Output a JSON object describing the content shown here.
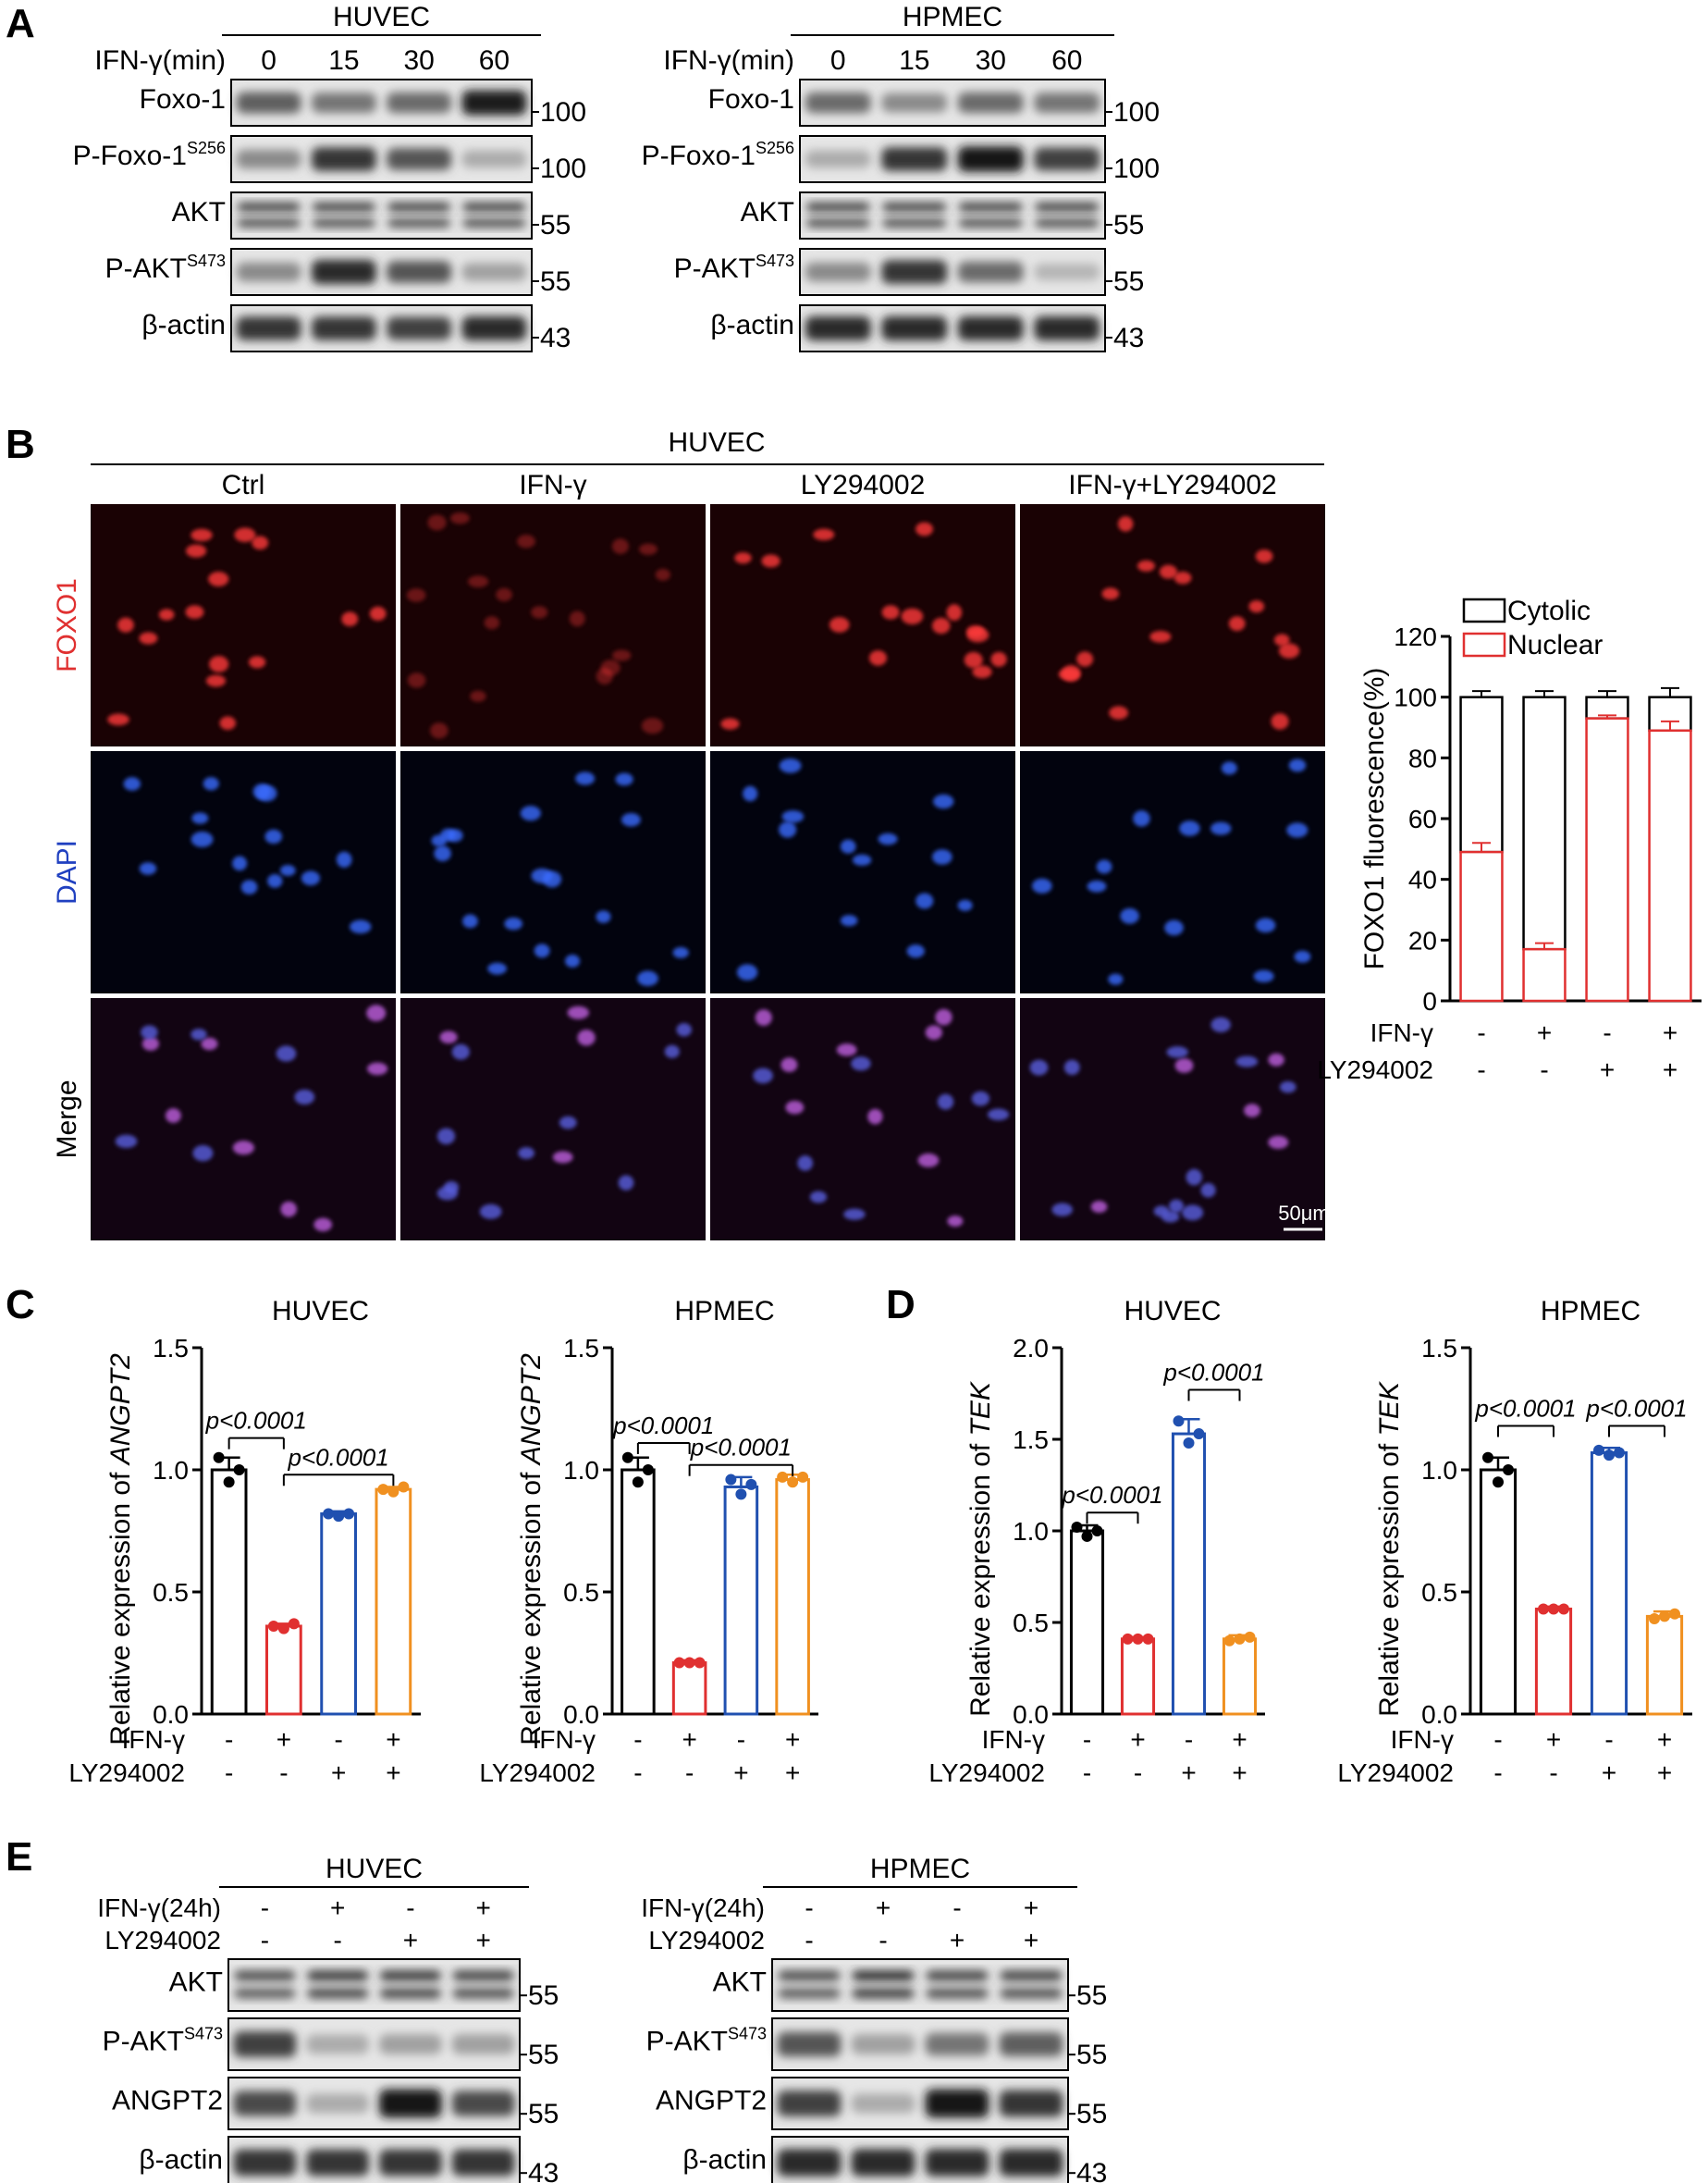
{
  "panels": {
    "A": "A",
    "B": "B",
    "C": "C",
    "D": "D",
    "E": "E"
  },
  "panelA": {
    "blots": [
      {
        "cell": "HUVEC",
        "time_label": "IFN-γ(min)",
        "times": [
          "0",
          "15",
          "30",
          "60"
        ],
        "rows": [
          {
            "label": "Foxo-1",
            "sup": "",
            "mw": "100",
            "bands": [
              0.65,
              0.55,
              0.6,
              0.95
            ],
            "double": false
          },
          {
            "label": "P-Foxo-1",
            "sup": "S256",
            "mw": "100",
            "bands": [
              0.45,
              0.85,
              0.7,
              0.3
            ],
            "double": false
          },
          {
            "label": "AKT",
            "sup": "",
            "mw": "55",
            "bands": [
              0.8,
              0.8,
              0.8,
              0.8
            ],
            "double": true
          },
          {
            "label": "P-AKT",
            "sup": "S473",
            "mw": "55",
            "bands": [
              0.45,
              0.9,
              0.7,
              0.35
            ],
            "double": false
          },
          {
            "label": "β-actin",
            "sup": "",
            "mw": "43",
            "bands": [
              0.85,
              0.85,
              0.8,
              0.9
            ],
            "double": false
          }
        ]
      },
      {
        "cell": "HPMEC",
        "time_label": "IFN-γ(min)",
        "times": [
          "0",
          "15",
          "30",
          "60"
        ],
        "rows": [
          {
            "label": "Foxo-1",
            "sup": "",
            "mw": "100",
            "bands": [
              0.6,
              0.45,
              0.6,
              0.55
            ],
            "double": false
          },
          {
            "label": "P-Foxo-1",
            "sup": "S256",
            "mw": "100",
            "bands": [
              0.3,
              0.85,
              1.0,
              0.8
            ],
            "double": false
          },
          {
            "label": "AKT",
            "sup": "",
            "mw": "55",
            "bands": [
              0.8,
              0.8,
              0.8,
              0.8
            ],
            "double": true
          },
          {
            "label": "P-AKT",
            "sup": "S473",
            "mw": "55",
            "bands": [
              0.45,
              0.85,
              0.6,
              0.25
            ],
            "double": false
          },
          {
            "label": "β-actin",
            "sup": "",
            "mw": "43",
            "bands": [
              0.9,
              0.9,
              0.9,
              0.9
            ],
            "double": false
          }
        ]
      }
    ]
  },
  "panelB": {
    "cell": "HUVEC",
    "conditions": [
      "Ctrl",
      "IFN-γ",
      "LY294002",
      "IFN-γ+LY294002"
    ],
    "rows": [
      {
        "label": "FOXO1",
        "color": "#e03030",
        "cell_color": "#ff3a3a"
      },
      {
        "label": "DAPI",
        "color": "#2040c0",
        "cell_color": "#3a6cff"
      },
      {
        "label": "Merge",
        "color": "#000000",
        "cell_color": "#c060e0"
      }
    ],
    "scale_bar": "50μm"
  },
  "chart_data": [
    {
      "id": "B-quant",
      "type": "bar",
      "stacked": true,
      "ylabel": "FOXO1 fluorescence(%)",
      "ylim": [
        0,
        120
      ],
      "yticks": [
        0,
        20,
        40,
        60,
        80,
        100,
        120
      ],
      "legend": [
        "Cytolic",
        "Nuclear"
      ],
      "series": [
        {
          "name": "Nuclear",
          "color": "#e03030",
          "values": [
            49,
            17,
            93,
            89
          ],
          "errors": [
            3,
            2,
            1,
            3
          ]
        },
        {
          "name": "Cytolic",
          "color": "#000000",
          "values": [
            51,
            83,
            7,
            11
          ],
          "errors": [
            2,
            2,
            2,
            3
          ]
        }
      ],
      "factors": [
        {
          "name": "IFN-γ",
          "signs": [
            "-",
            "+",
            "-",
            "+"
          ]
        },
        {
          "name": "LY294002",
          "signs": [
            "-",
            "-",
            "+",
            "+"
          ]
        }
      ]
    },
    {
      "id": "C-HUVEC",
      "type": "bar",
      "title": "HUVEC",
      "ylabel": "Relative expression of ",
      "ylabel_italic": "ANGPT2",
      "ylim": [
        0,
        1.5
      ],
      "yticks": [
        "0.0",
        "0.5",
        "1.0",
        "1.5"
      ],
      "values": [
        1.0,
        0.36,
        0.82,
        0.92
      ],
      "errors": [
        0.05,
        0.01,
        0.01,
        0.01
      ],
      "points": [
        [
          1.05,
          0.95,
          1.0
        ],
        [
          0.36,
          0.35,
          0.37
        ],
        [
          0.82,
          0.81,
          0.82
        ],
        [
          0.92,
          0.91,
          0.93
        ]
      ],
      "colors": [
        "#000000",
        "#e03030",
        "#2050b0",
        "#f09020"
      ],
      "sig": [
        {
          "text": "p<0.0001",
          "from": 0,
          "to": 1,
          "y": 1.13
        },
        {
          "text": "p<0.0001",
          "from": 1,
          "to": 3,
          "y": 0.98
        }
      ],
      "factors": [
        {
          "name": "IFN-γ",
          "signs": [
            "-",
            "+",
            "-",
            "+"
          ]
        },
        {
          "name": "LY294002",
          "signs": [
            "-",
            "-",
            "+",
            "+"
          ]
        }
      ]
    },
    {
      "id": "C-HPMEC",
      "type": "bar",
      "title": "HPMEC",
      "ylabel": "Relative expression of ",
      "ylabel_italic": "ANGPT2",
      "ylim": [
        0,
        1.5
      ],
      "yticks": [
        "0.0",
        "0.5",
        "1.0",
        "1.5"
      ],
      "values": [
        1.0,
        0.21,
        0.93,
        0.96
      ],
      "errors": [
        0.05,
        0.01,
        0.04,
        0.02
      ],
      "points": [
        [
          1.05,
          0.95,
          1.0
        ],
        [
          0.21,
          0.21,
          0.21
        ],
        [
          0.96,
          0.9,
          0.94
        ],
        [
          0.97,
          0.95,
          0.97
        ]
      ],
      "colors": [
        "#000000",
        "#e03030",
        "#2050b0",
        "#f09020"
      ],
      "sig": [
        {
          "text": "p<0.0001",
          "from": 0,
          "to": 1,
          "y": 1.11
        },
        {
          "text": "p<0.0001",
          "from": 1,
          "to": 3,
          "y": 1.02
        }
      ],
      "factors": [
        {
          "name": "IFN-γ",
          "signs": [
            "-",
            "+",
            "-",
            "+"
          ]
        },
        {
          "name": "LY294002",
          "signs": [
            "-",
            "-",
            "+",
            "+"
          ]
        }
      ]
    },
    {
      "id": "D-HUVEC",
      "type": "bar",
      "title": "HUVEC",
      "ylabel": "Relative expression of ",
      "ylabel_italic": "TEK",
      "ylim": [
        0,
        2.0
      ],
      "yticks": [
        "0.0",
        "0.5",
        "1.0",
        "1.5",
        "2.0"
      ],
      "values": [
        1.0,
        0.41,
        1.53,
        0.41
      ],
      "errors": [
        0.03,
        0.01,
        0.08,
        0.02
      ],
      "points": [
        [
          1.02,
          0.97,
          1.0
        ],
        [
          0.41,
          0.41,
          0.41
        ],
        [
          1.6,
          1.48,
          1.53
        ],
        [
          0.4,
          0.41,
          0.42
        ]
      ],
      "colors": [
        "#000000",
        "#e03030",
        "#2050b0",
        "#f09020"
      ],
      "sig": [
        {
          "text": "p<0.0001",
          "from": 0,
          "to": 1,
          "y": 1.1
        },
        {
          "text": "p<0.0001",
          "from": 2,
          "to": 3,
          "y": 1.77
        }
      ],
      "factors": [
        {
          "name": "IFN-γ",
          "signs": [
            "-",
            "+",
            "-",
            "+"
          ]
        },
        {
          "name": "LY294002",
          "signs": [
            "-",
            "-",
            "+",
            "+"
          ]
        }
      ]
    },
    {
      "id": "D-HPMEC",
      "type": "bar",
      "title": "HPMEC",
      "ylabel": "Relative expression of ",
      "ylabel_italic": "TEK",
      "ylim": [
        0,
        1.5
      ],
      "yticks": [
        "0.0",
        "0.5",
        "1.0",
        "1.5"
      ],
      "values": [
        1.0,
        0.43,
        1.07,
        0.4
      ],
      "errors": [
        0.05,
        0.01,
        0.02,
        0.02
      ],
      "points": [
        [
          1.05,
          0.95,
          1.0
        ],
        [
          0.43,
          0.43,
          0.43
        ],
        [
          1.08,
          1.06,
          1.07
        ],
        [
          0.39,
          0.4,
          0.41
        ]
      ],
      "colors": [
        "#000000",
        "#e03030",
        "#2050b0",
        "#f09020"
      ],
      "sig": [
        {
          "text": "p<0.0001",
          "from": 0,
          "to": 1,
          "y": 1.18
        },
        {
          "text": "p<0.0001",
          "from": 2,
          "to": 3,
          "y": 1.18
        }
      ],
      "factors": [
        {
          "name": "IFN-γ",
          "signs": [
            "-",
            "+",
            "-",
            "+"
          ]
        },
        {
          "name": "LY294002",
          "signs": [
            "-",
            "-",
            "+",
            "+"
          ]
        }
      ]
    }
  ],
  "panelE": {
    "blots": [
      {
        "cell": "HUVEC",
        "factors": [
          {
            "name": "IFN-γ(24h)",
            "signs": [
              "-",
              "+",
              "-",
              "+"
            ]
          },
          {
            "name": "LY294002",
            "signs": [
              "-",
              "-",
              "+",
              "+"
            ]
          }
        ],
        "rows": [
          {
            "label": "AKT",
            "sup": "",
            "mw": "55",
            "bands": [
              0.75,
              0.85,
              0.85,
              0.8
            ],
            "double": true
          },
          {
            "label": "P-AKT",
            "sup": "S473",
            "mw": "55",
            "bands": [
              0.8,
              0.3,
              0.35,
              0.35
            ],
            "double": false
          },
          {
            "label": "ANGPT2",
            "sup": "",
            "mw": "55",
            "bands": [
              0.75,
              0.3,
              1.0,
              0.75
            ],
            "double": false
          },
          {
            "label": "β-actin",
            "sup": "",
            "mw": "43",
            "bands": [
              0.85,
              0.85,
              0.85,
              0.85
            ],
            "double": false
          }
        ]
      },
      {
        "cell": "HPMEC",
        "factors": [
          {
            "name": "IFN-γ(24h)",
            "signs": [
              "-",
              "+",
              "-",
              "+"
            ]
          },
          {
            "name": "LY294002",
            "signs": [
              "-",
              "-",
              "+",
              "+"
            ]
          }
        ],
        "rows": [
          {
            "label": "AKT",
            "sup": "",
            "mw": "55",
            "bands": [
              0.75,
              0.9,
              0.8,
              0.8
            ],
            "double": true
          },
          {
            "label": "P-AKT",
            "sup": "S473",
            "mw": "55",
            "bands": [
              0.7,
              0.35,
              0.55,
              0.65
            ],
            "double": false
          },
          {
            "label": "ANGPT2",
            "sup": "",
            "mw": "55",
            "bands": [
              0.8,
              0.3,
              1.0,
              0.85
            ],
            "double": false
          },
          {
            "label": "β-actin",
            "sup": "",
            "mw": "43",
            "bands": [
              0.9,
              0.9,
              0.9,
              0.9
            ],
            "double": false
          }
        ]
      }
    ]
  }
}
